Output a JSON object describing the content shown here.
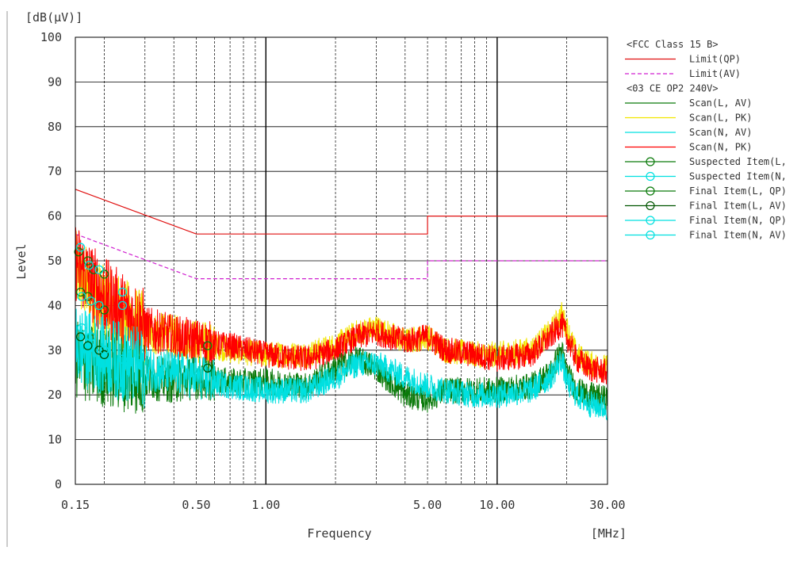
{
  "chart_data": {
    "type": "line",
    "title": "",
    "xlabel": "Frequency",
    "ylabel": "Level",
    "y_unit": "[dB(µV)]",
    "x_unit": "[MHz]",
    "x_scale": "log",
    "xlim": [
      0.15,
      30
    ],
    "ylim": [
      0,
      100
    ],
    "grid": true,
    "legend_position": "right",
    "x_ticks": [
      {
        "value": 0.15,
        "label": "0.15"
      },
      {
        "value": 0.5,
        "label": "0.50"
      },
      {
        "value": 1,
        "label": "1.00"
      },
      {
        "value": 5,
        "label": "5.00"
      },
      {
        "value": 10,
        "label": "10.00"
      },
      {
        "value": 30,
        "label": "30.00"
      }
    ],
    "y_ticks": [
      {
        "value": 0,
        "label": "0"
      },
      {
        "value": 10,
        "label": "10"
      },
      {
        "value": 20,
        "label": "20"
      },
      {
        "value": 30,
        "label": "30"
      },
      {
        "value": 40,
        "label": "40"
      },
      {
        "value": 50,
        "label": "50"
      },
      {
        "value": 60,
        "label": "60"
      },
      {
        "value": 70,
        "label": "70"
      },
      {
        "value": 80,
        "label": "80"
      },
      {
        "value": 90,
        "label": "90"
      },
      {
        "value": 100,
        "label": "100"
      }
    ],
    "legend_groups": [
      {
        "header": "<FCC Class 15 B>",
        "entries": [
          {
            "name": "Limit(QP)",
            "color": "#e01010",
            "style": "solid",
            "marker": false
          },
          {
            "name": "Limit(AV)",
            "color": "#d020d0",
            "style": "dashed",
            "marker": false
          }
        ]
      },
      {
        "header": "<03 CE OP2 240V>",
        "entries": [
          {
            "name": "Scan(L, AV)",
            "color": "#0a7a0a",
            "style": "solid",
            "marker": false
          },
          {
            "name": "Scan(L, PK)",
            "color": "#f2e600",
            "style": "solid",
            "marker": false
          },
          {
            "name": "Scan(N, AV)",
            "color": "#00e0e0",
            "style": "solid",
            "marker": false
          },
          {
            "name": "Scan(N, PK)",
            "color": "#ff0000",
            "style": "solid",
            "marker": false
          },
          {
            "name": "Suspected Item(L,",
            "color": "#0a7a0a",
            "style": "solid",
            "marker": true
          },
          {
            "name": "Suspected Item(N,",
            "color": "#00e0e0",
            "style": "solid",
            "marker": true
          },
          {
            "name": "Final Item(L, QP)",
            "color": "#0a7a0a",
            "style": "solid",
            "marker": true
          },
          {
            "name": "Final Item(L, AV)",
            "color": "#005500",
            "style": "solid",
            "marker": true
          },
          {
            "name": "Final Item(N, QP)",
            "color": "#00e0e0",
            "style": "solid",
            "marker": true
          },
          {
            "name": "Final Item(N, AV)",
            "color": "#00e0e0",
            "style": "solid",
            "marker": true
          }
        ]
      }
    ],
    "series": [
      {
        "name": "Limit(QP)",
        "color": "#e01010",
        "x": [
          0.15,
          0.5,
          0.5,
          5,
          5,
          30
        ],
        "y": [
          66,
          56,
          56,
          56,
          60,
          60
        ]
      },
      {
        "name": "Limit(AV)",
        "color": "#d020d0",
        "x": [
          0.15,
          0.5,
          0.5,
          5,
          5,
          30
        ],
        "y": [
          56,
          46,
          46,
          46,
          50,
          50
        ]
      },
      {
        "name": "Scan(L, PK)",
        "color": "#f2e600",
        "x": [
          0.15,
          0.17,
          0.2,
          0.25,
          0.3,
          0.4,
          0.5,
          0.7,
          1,
          1.5,
          2,
          2.5,
          3,
          4,
          5,
          6,
          8,
          10,
          14,
          17,
          19,
          20,
          22,
          25,
          30
        ],
        "y": [
          48,
          44,
          40,
          37,
          34,
          33,
          32,
          30,
          29,
          29,
          31,
          34,
          35,
          32,
          33,
          30,
          29,
          29,
          30,
          34,
          38,
          35,
          29,
          27,
          26
        ]
      },
      {
        "name": "Scan(N, PK)",
        "color": "#ff0000",
        "x": [
          0.15,
          0.17,
          0.2,
          0.25,
          0.3,
          0.4,
          0.5,
          0.7,
          1,
          1.5,
          2,
          2.5,
          3,
          4,
          5,
          6,
          8,
          10,
          14,
          17,
          19,
          20,
          22,
          25,
          30
        ],
        "y": [
          50,
          46,
          42,
          38,
          35,
          33,
          32,
          31,
          29,
          28,
          30,
          33,
          34,
          32,
          33,
          30,
          29,
          28,
          29,
          33,
          36,
          33,
          28,
          26,
          25
        ]
      },
      {
        "name": "Scan(L, AV)",
        "color": "#0a7a0a",
        "x": [
          0.15,
          0.17,
          0.2,
          0.25,
          0.3,
          0.4,
          0.5,
          0.7,
          1,
          1.5,
          2,
          2.5,
          3,
          4,
          5,
          6,
          8,
          10,
          14,
          17,
          19,
          20,
          22,
          25,
          30
        ],
        "y": [
          28,
          27,
          26,
          25,
          24,
          23,
          24,
          23,
          23,
          22,
          26,
          28,
          26,
          20,
          19,
          21,
          21,
          21,
          22,
          25,
          30,
          25,
          21,
          20,
          19
        ]
      },
      {
        "name": "Scan(N, AV)",
        "color": "#00e0e0",
        "x": [
          0.15,
          0.17,
          0.2,
          0.25,
          0.3,
          0.4,
          0.5,
          0.7,
          1,
          1.5,
          2,
          2.5,
          3,
          4,
          5,
          6,
          8,
          10,
          14,
          17,
          19,
          20,
          22,
          25,
          30
        ],
        "y": [
          31,
          30,
          29,
          27,
          26,
          25,
          24,
          22,
          21,
          21,
          24,
          27,
          27,
          24,
          22,
          21,
          20,
          20,
          21,
          24,
          28,
          23,
          20,
          18,
          17
        ]
      }
    ],
    "markers": [
      {
        "series": "Suspected Item(L,",
        "color": "#0a7a0a",
        "points": [
          [
            0.155,
            52
          ],
          [
            0.17,
            50
          ],
          [
            0.18,
            48
          ],
          [
            0.2,
            47
          ]
        ]
      },
      {
        "series": "Suspected Item(N,",
        "color": "#00e0e0",
        "points": [
          [
            0.158,
            53
          ],
          [
            0.172,
            49
          ],
          [
            0.19,
            48
          ]
        ]
      },
      {
        "series": "Final Item(L, QP)",
        "color": "#0a7a0a",
        "points": [
          [
            0.158,
            43
          ],
          [
            0.17,
            42
          ],
          [
            0.19,
            40
          ],
          [
            0.2,
            39
          ],
          [
            0.56,
            31
          ]
        ]
      },
      {
        "series": "Final Item(L, AV)",
        "color": "#005500",
        "points": [
          [
            0.158,
            33
          ],
          [
            0.17,
            31
          ],
          [
            0.19,
            30
          ],
          [
            0.2,
            29
          ],
          [
            0.56,
            26
          ]
        ]
      },
      {
        "series": "Final Item(N, QP)",
        "color": "#00e0e0",
        "points": [
          [
            0.16,
            42
          ],
          [
            0.175,
            41
          ],
          [
            0.19,
            40
          ],
          [
            0.24,
            43
          ],
          [
            0.24,
            40
          ]
        ]
      },
      {
        "series": "Final Item(N, AV)",
        "color": "#00e0e0",
        "points": [
          [
            0.16,
            35
          ],
          [
            0.175,
            33
          ],
          [
            0.2,
            30
          ],
          [
            0.24,
            28
          ]
        ]
      }
    ]
  }
}
